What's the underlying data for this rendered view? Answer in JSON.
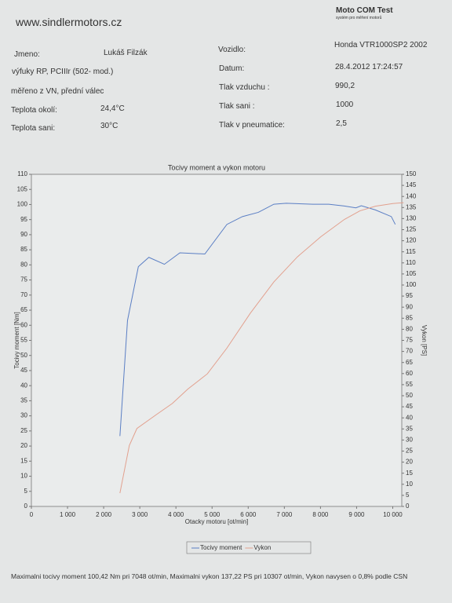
{
  "header": {
    "site": "www.sindlermotors.cz",
    "brand": "Moto COM Test",
    "brand_sub": "systém pro měření motorů"
  },
  "left_fields": [
    {
      "label": "Jmeno:",
      "value": "Lukáš Filzák"
    },
    {
      "label": "výfuky RP, PCIIIr (502- mod.)"
    },
    {
      "label": "měřeno z VN, přední válec"
    },
    {
      "label": "Teplota okolí:",
      "value": "24,4°C"
    },
    {
      "label": "Teplota sani:",
      "value": "30°C"
    }
  ],
  "right_fields": [
    {
      "label": "Vozidlo:",
      "value": "Honda VTR1000SP2 2002"
    },
    {
      "label": "Datum:",
      "value": "28.4.2012 17:24:57"
    },
    {
      "label": "Tlak vzduchu :",
      "value": "990,2"
    },
    {
      "label": "Tlak sani :",
      "value": "1000"
    },
    {
      "label": "Tlak v pneumatice:",
      "value": "2,5"
    }
  ],
  "chart_data": {
    "type": "line",
    "title": "Tocivy moment a vykon motoru",
    "xlabel": "Otacky motoru [ot/min]",
    "ylabel": "Tocivy moment [Nm]",
    "y2label": "Vykon [PS]",
    "xlim": [
      0,
      10250
    ],
    "ylim": [
      0,
      110
    ],
    "y2lim": [
      0,
      150
    ],
    "xticks": [
      0,
      {
        "value": 1000,
        "label": "1 000"
      },
      {
        "value": 2000,
        "label": "2 000"
      },
      {
        "value": 3000,
        "label": "3 000"
      },
      {
        "value": 4000,
        "label": "4 000"
      },
      {
        "value": 5000,
        "label": "5 000"
      },
      {
        "value": 6000,
        "label": "6 000"
      },
      {
        "value": 7000,
        "label": "7 000"
      },
      {
        "value": 8000,
        "label": "8 000"
      },
      {
        "value": 9000,
        "label": "9 000"
      },
      {
        "value": 10000,
        "label": "10 000"
      }
    ],
    "yticks": [
      0,
      5,
      10,
      15,
      20,
      25,
      30,
      35,
      40,
      45,
      50,
      55,
      60,
      65,
      70,
      75,
      80,
      85,
      90,
      95,
      100,
      105,
      110
    ],
    "y2ticks": [
      0,
      5,
      10,
      15,
      20,
      25,
      30,
      35,
      40,
      45,
      50,
      55,
      60,
      65,
      70,
      75,
      80,
      85,
      90,
      95,
      100,
      105,
      110,
      115,
      120,
      125,
      130,
      135,
      140,
      145,
      150
    ],
    "series": [
      {
        "name": "Tocivy moment",
        "color": "#5a7ec4",
        "x": [
          2450,
          2660,
          2960,
          3250,
          3680,
          4110,
          4800,
          5410,
          5840,
          6280,
          6710,
          7050,
          7790,
          8230,
          8660,
          8980,
          9130,
          9520,
          9960,
          10070
        ],
        "values": [
          23.3,
          61.6,
          79.4,
          82.5,
          80.2,
          84,
          83.6,
          93.4,
          96,
          97.4,
          100.1,
          100.4,
          100.1,
          100.1,
          99.5,
          98.9,
          99.6,
          98.2,
          96,
          93.4
        ]
      },
      {
        "name": "Vykon",
        "color": "#e2a08e",
        "axis": "y2",
        "x": [
          2450,
          2710,
          2920,
          3460,
          3900,
          4330,
          4870,
          5410,
          6060,
          6710,
          7360,
          8010,
          8660,
          9090,
          9520,
          10000,
          10300
        ],
        "values": [
          6,
          27.5,
          35.2,
          41.5,
          46.5,
          53,
          59.9,
          71.5,
          87.3,
          101.4,
          112.7,
          121.8,
          129.6,
          133.5,
          135.6,
          136.8,
          137.2
        ]
      }
    ]
  },
  "footer": "Maximalni tocivy moment 100,42 Nm pri 7048 ot/min,  Maximalni vykon 137,22 PS pri 10307 ot/min,  Vykon navysen o 0,8% podle CSN"
}
